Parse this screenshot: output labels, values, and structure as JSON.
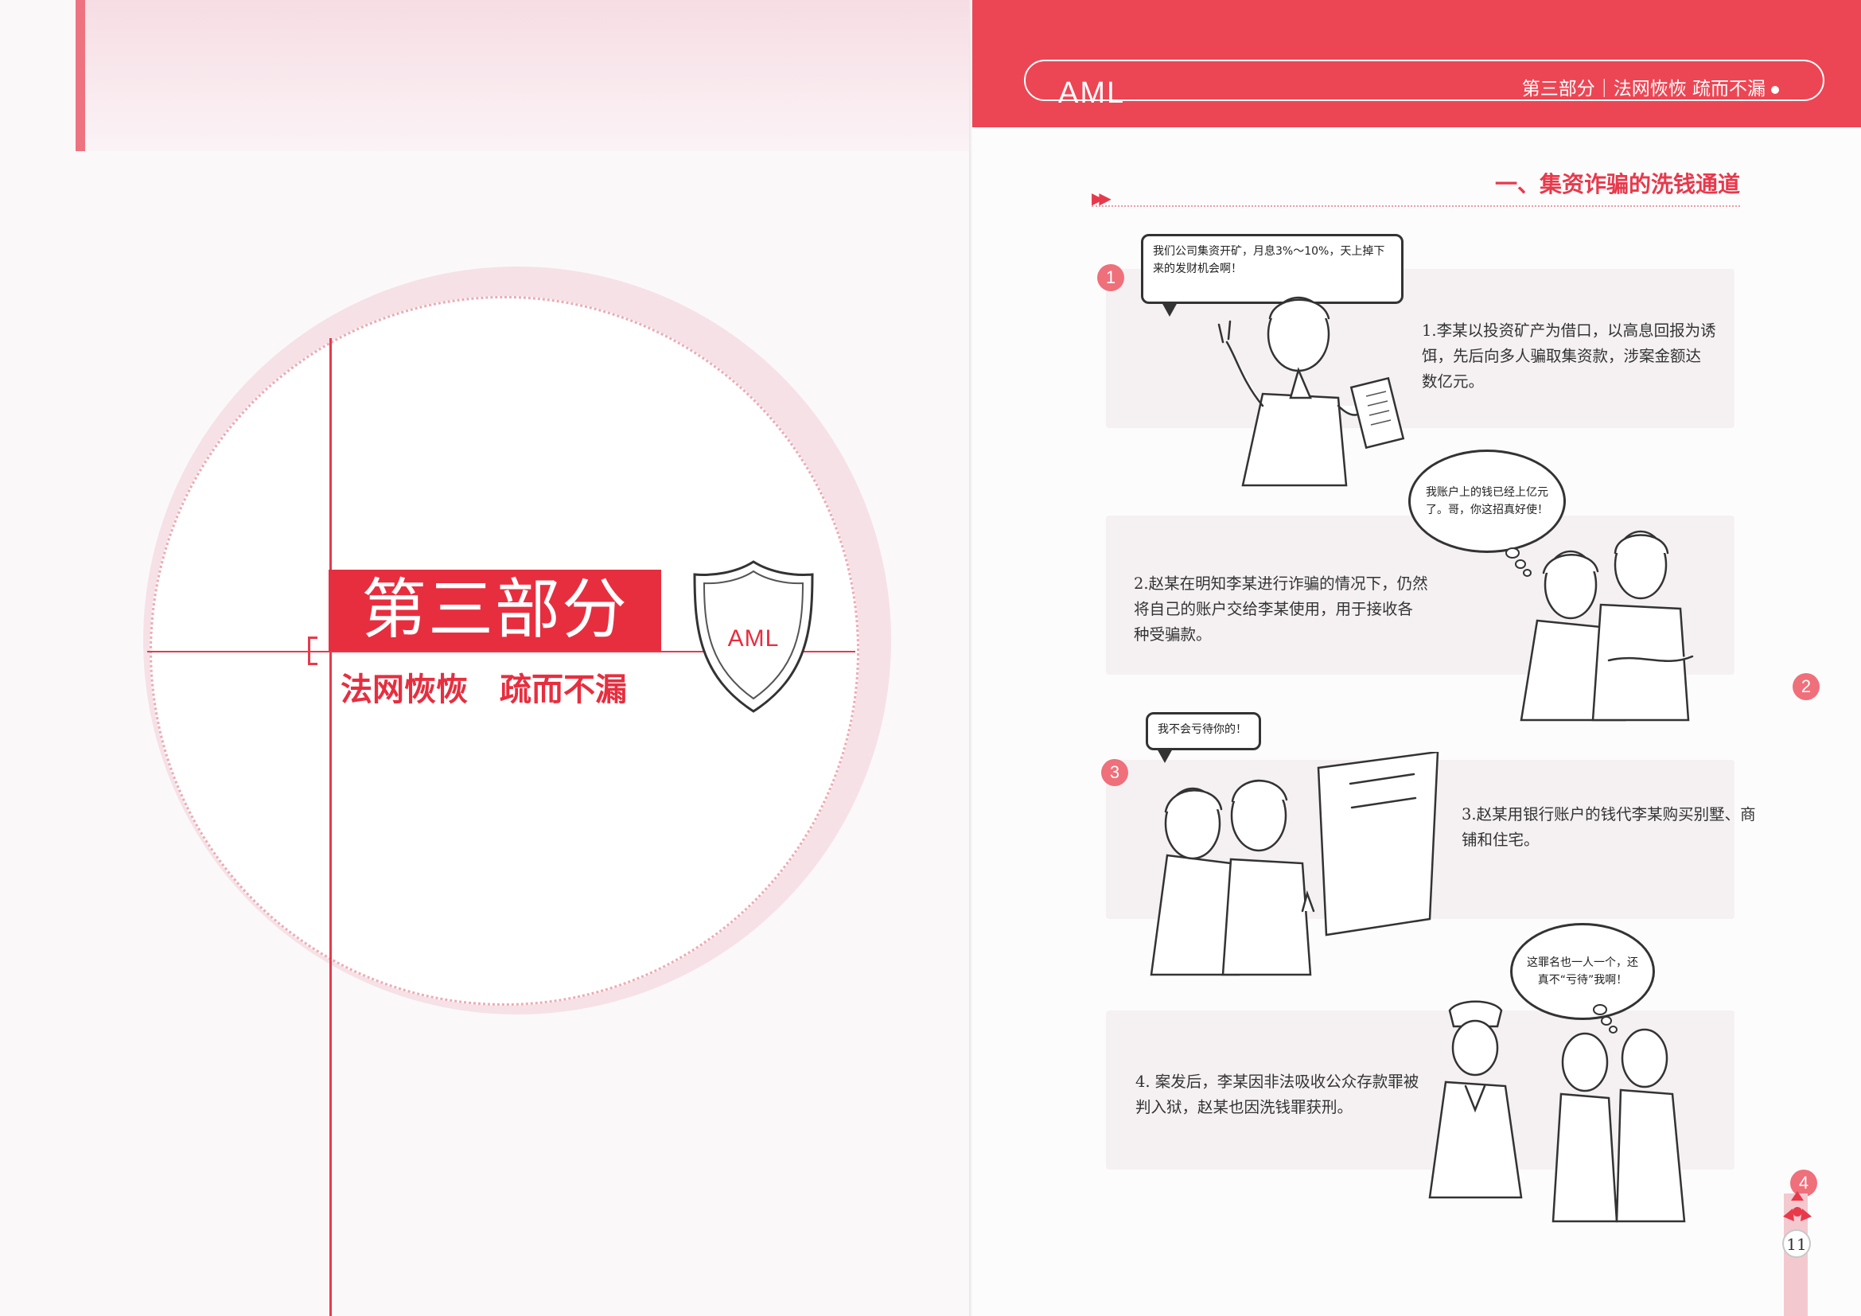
{
  "left_page": {
    "title": "第三部分",
    "subtitle": "法网恢恢　疏而不漏",
    "shield_text": "AML"
  },
  "right_page": {
    "header": {
      "brand": "AML",
      "section": "第三部分｜法网恢恢  疏而不漏"
    },
    "section_title": "一、集资诈骗的洗钱通道",
    "panels": [
      {
        "number": "1",
        "bubble": "我们公司集资开矿，月息3%～10%，天上掉下来的发财机会啊！",
        "caption": "1.李某以投资矿产为借口，以高息回报为诱饵，先后向多人骗取集资款，涉案金额达数亿元。"
      },
      {
        "number": "2",
        "bubble": "我账户上的钱已经上亿元了。哥，你这招真好使！",
        "caption": "2.赵某在明知李某进行诈骗的情况下，仍然将自己的账户交给李某使用，用于接收各种受骗款。"
      },
      {
        "number": "3",
        "bubble": "我不会亏待你的！",
        "caption": "3.赵某用银行账户的钱代李某购买别墅、商铺和住宅。"
      },
      {
        "number": "4",
        "bubble": "这罪名也一人一个，还真不“亏待”我啊！",
        "caption": "4. 案发后，李某因非法吸收公众存款罪被判入狱，赵某也因洗钱罪获刑。"
      }
    ],
    "page_number": "11"
  },
  "colors": {
    "accent": "#e72e3f",
    "header": "#ec4654",
    "badge": "#ef6f7a"
  }
}
